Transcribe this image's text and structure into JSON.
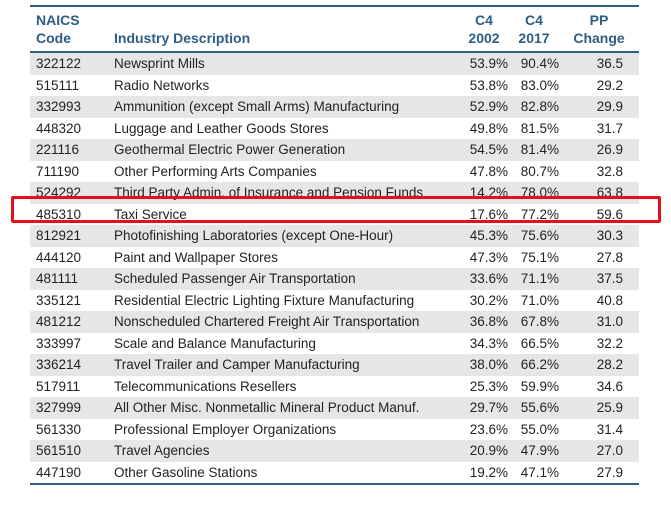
{
  "header": {
    "code_label": [
      "NAICS",
      "Code"
    ],
    "desc_label": "Industry Description",
    "c4a_label": [
      "C4",
      "2002"
    ],
    "c4b_label": [
      "C4",
      "2017"
    ],
    "pp_label": [
      "PP",
      "Change"
    ]
  },
  "rows": [
    {
      "code": "322122",
      "desc": "Newsprint Mills",
      "c4_2002": "53.9%",
      "c4_2017": "90.4%",
      "pp": "36.5"
    },
    {
      "code": "515111",
      "desc": "Radio Networks",
      "c4_2002": "53.8%",
      "c4_2017": "83.0%",
      "pp": "29.2"
    },
    {
      "code": "332993",
      "desc": "Ammunition (except Small Arms) Manufacturing",
      "c4_2002": "52.9%",
      "c4_2017": "82.8%",
      "pp": "29.9"
    },
    {
      "code": "448320",
      "desc": "Luggage and Leather Goods Stores",
      "c4_2002": "49.8%",
      "c4_2017": "81.5%",
      "pp": "31.7"
    },
    {
      "code": "221116",
      "desc": "Geothermal Electric Power Generation",
      "c4_2002": "54.5%",
      "c4_2017": "81.4%",
      "pp": "26.9"
    },
    {
      "code": "711190",
      "desc": "Other Performing Arts Companies",
      "c4_2002": "47.8%",
      "c4_2017": "80.7%",
      "pp": "32.8"
    },
    {
      "code": "524292",
      "desc": "Third Party Admin. of Insurance and Pension Funds",
      "c4_2002": "14.2%",
      "c4_2017": "78.0%",
      "pp": "63.8"
    },
    {
      "code": "485310",
      "desc": "Taxi Service",
      "c4_2002": "17.6%",
      "c4_2017": "77.2%",
      "pp": "59.6"
    },
    {
      "code": "812921",
      "desc": "Photofinishing Laboratories (except One-Hour)",
      "c4_2002": "45.3%",
      "c4_2017": "75.6%",
      "pp": "30.3"
    },
    {
      "code": "444120",
      "desc": "Paint and Wallpaper Stores",
      "c4_2002": "47.3%",
      "c4_2017": "75.1%",
      "pp": "27.8"
    },
    {
      "code": "481111",
      "desc": "Scheduled Passenger Air Transportation",
      "c4_2002": "33.6%",
      "c4_2017": "71.1%",
      "pp": "37.5"
    },
    {
      "code": "335121",
      "desc": "Residential Electric Lighting Fixture Manufacturing",
      "c4_2002": "30.2%",
      "c4_2017": "71.0%",
      "pp": "40.8"
    },
    {
      "code": "481212",
      "desc": "Nonscheduled Chartered Freight Air Transportation",
      "c4_2002": "36.8%",
      "c4_2017": "67.8%",
      "pp": "31.0"
    },
    {
      "code": "333997",
      "desc": "Scale and Balance Manufacturing",
      "c4_2002": "34.3%",
      "c4_2017": "66.5%",
      "pp": "32.2"
    },
    {
      "code": "336214",
      "desc": "Travel Trailer and Camper Manufacturing",
      "c4_2002": "38.0%",
      "c4_2017": "66.2%",
      "pp": "28.2"
    },
    {
      "code": "517911",
      "desc": "Telecommunications Resellers",
      "c4_2002": "25.3%",
      "c4_2017": "59.9%",
      "pp": "34.6"
    },
    {
      "code": "327999",
      "desc": "All Other Misc. Nonmetallic Mineral Product Manuf.",
      "c4_2002": "29.7%",
      "c4_2017": "55.6%",
      "pp": "25.9"
    },
    {
      "code": "561330",
      "desc": "Professional Employer Organizations",
      "c4_2002": "23.6%",
      "c4_2017": "55.0%",
      "pp": "31.4"
    },
    {
      "code": "561510",
      "desc": "Travel Agencies",
      "c4_2002": "20.9%",
      "c4_2017": "47.9%",
      "pp": "27.0"
    },
    {
      "code": "447190",
      "desc": "Other Gasoline Stations",
      "c4_2002": "19.2%",
      "c4_2017": "47.1%",
      "pp": "27.9"
    }
  ],
  "highlighted_code": "485310",
  "colors": {
    "header_text": "#2e5d86",
    "rule": "#2e5d86",
    "shade": "#e5e6e7",
    "highlight": "#e3101a"
  }
}
